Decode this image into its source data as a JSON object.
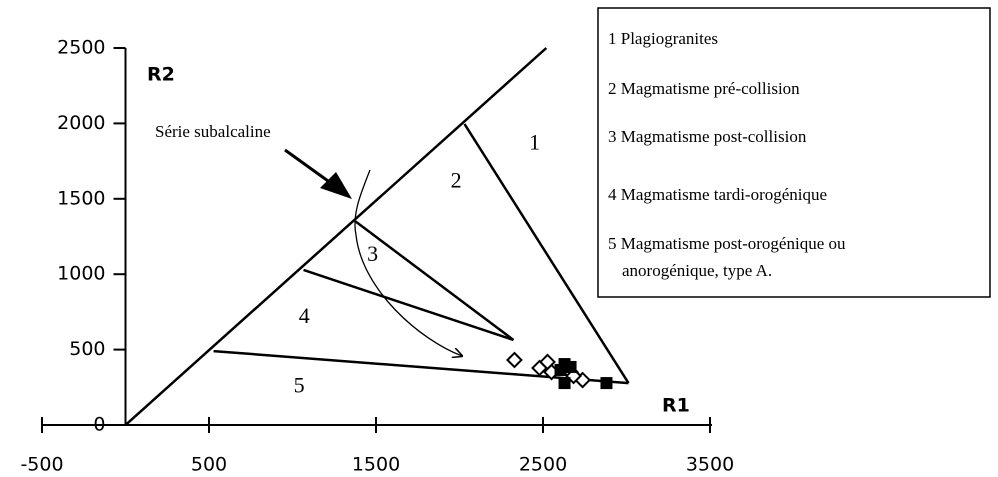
{
  "chart_data": {
    "type": "scatter",
    "xlabel": "R1",
    "ylabel": "R2",
    "xlim": [
      -500,
      3500
    ],
    "xticks": [
      -500,
      500,
      1500,
      2500,
      3500
    ],
    "ylim": [
      0,
      2500
    ],
    "yticks": [
      0,
      500,
      1000,
      1500,
      2000,
      2500
    ],
    "series": [
      {
        "marker": "diamond",
        "color": "#000000",
        "x": [
          2329,
          2479,
          2527,
          2551,
          2665,
          2737,
          2683
        ],
        "y": [
          431,
          378,
          418,
          351,
          351,
          298,
          325
        ]
      },
      {
        "marker": "square",
        "color": "#000000",
        "x": [
          2629,
          2605,
          2665,
          2629,
          2880
        ],
        "y": [
          404,
          365,
          385,
          278,
          278
        ]
      }
    ],
    "boundaries": [
      {
        "x": [
          0,
          2520
        ],
        "y": [
          0,
          2500
        ]
      },
      {
        "x": [
          2030,
          3012
        ],
        "y": [
          1996,
          278
        ]
      },
      {
        "x": [
          527,
          3012
        ],
        "y": [
          490,
          278
        ]
      },
      {
        "x": [
          1066,
          2323
        ],
        "y": [
          1028,
          564
        ]
      },
      {
        "x": [
          1377,
          2323
        ],
        "y": [
          1350,
          564
        ]
      }
    ],
    "field_labels": [
      {
        "text": "1",
        "x": 2450,
        "y": 1860
      },
      {
        "text": "2",
        "x": 1980,
        "y": 1610
      },
      {
        "text": "3",
        "x": 1480,
        "y": 1120
      },
      {
        "text": "4",
        "x": 1070,
        "y": 710
      },
      {
        "text": "5",
        "x": 1040,
        "y": 250
      }
    ],
    "annotation": "Série subalcaline",
    "legend": [
      "1 Plagiogranites",
      "2 Magmatisme pré-collision",
      "3 Magmatisme post-collision",
      "4 Magmatisme tardi-orogénique",
      "5 Magmatisme post-orogénique ou",
      "anorogénique, type A."
    ]
  }
}
